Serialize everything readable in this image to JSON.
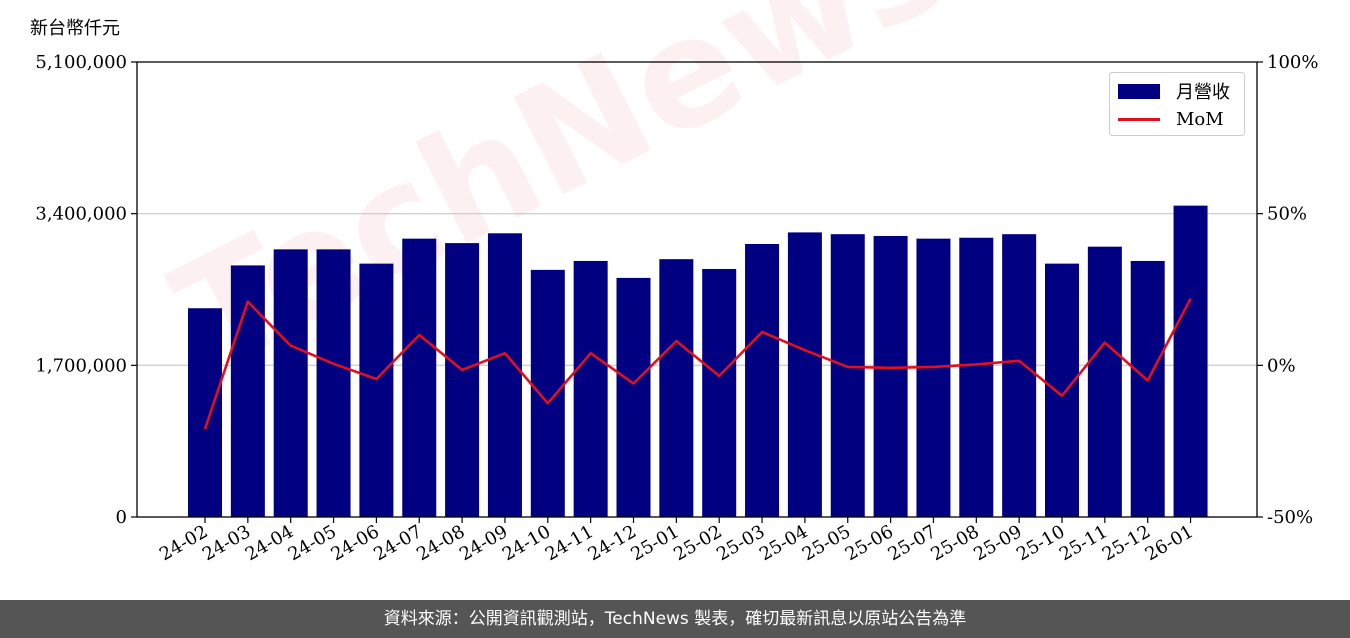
{
  "unit_label": "新台幣仟元",
  "footer_text": "資料來源：公開資訊觀測站，TechNews 製表，確切最新訊息以原站公告為準",
  "watermark_text": "TechNews",
  "colors": {
    "bar": "#000080",
    "line": "#e0101c",
    "footer_bg": "#555555",
    "grid": "#d0d0d0"
  },
  "legend": {
    "bar_label": "月營收",
    "line_label": "MoM"
  },
  "chart_data": {
    "type": "bar",
    "categories": [
      "24-02",
      "24-03",
      "24-04",
      "24-05",
      "24-06",
      "24-07",
      "24-08",
      "24-09",
      "24-10",
      "24-11",
      "24-12",
      "25-01",
      "25-02",
      "25-03",
      "25-04",
      "25-05",
      "25-06",
      "25-07",
      "25-08",
      "25-09",
      "25-10",
      "25-11",
      "25-12",
      "26-01"
    ],
    "series": [
      {
        "name": "月營收",
        "type": "bar",
        "axis": "left",
        "values": [
          2340000,
          2820000,
          3000000,
          3000000,
          2840000,
          3120000,
          3070000,
          3180000,
          2770000,
          2870000,
          2680000,
          2890000,
          2780000,
          3060000,
          3190000,
          3170000,
          3150000,
          3120000,
          3130000,
          3170000,
          2840000,
          3030000,
          2870000,
          3490000
        ]
      },
      {
        "name": "MoM",
        "type": "line",
        "axis": "right",
        "values": [
          -21,
          21,
          6.5,
          0.5,
          -4.5,
          10,
          -1.5,
          4,
          -12.5,
          4,
          -6,
          8,
          -3.5,
          11,
          5,
          -0.5,
          -0.8,
          -0.5,
          0.3,
          1.5,
          -10,
          7.5,
          -5,
          22
        ]
      }
    ],
    "y_left": {
      "min": 0,
      "max": 5100000,
      "ticks": [
        0,
        1700000,
        3400000,
        5100000
      ],
      "tick_labels": [
        "0",
        "1,700,000",
        "3,400,000",
        "5,100,000"
      ]
    },
    "y_right": {
      "min": -50,
      "max": 100,
      "ticks": [
        -50,
        0,
        50,
        100
      ],
      "tick_labels": [
        "-50%",
        "0%",
        "50%",
        "100%"
      ]
    },
    "grid": "horizontal",
    "legend_position": "top-right"
  }
}
